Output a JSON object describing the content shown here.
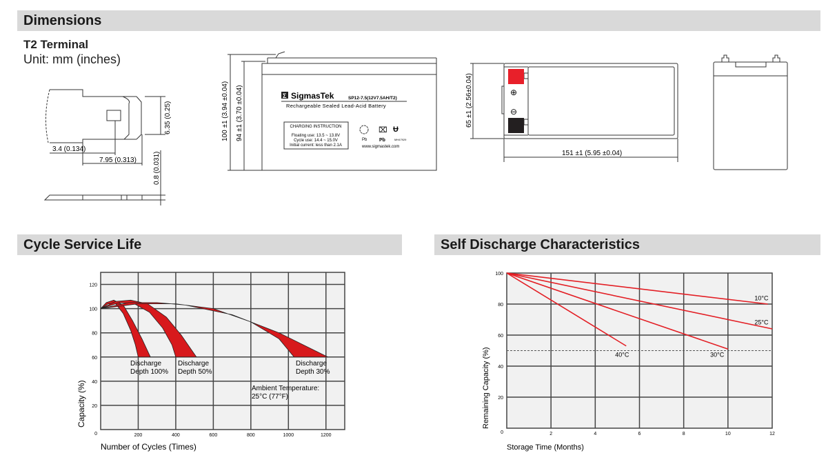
{
  "sections": {
    "dimensions": "Dimensions",
    "cycle_life": "Cycle Service Life",
    "self_discharge": "Self Discharge Characteristics"
  },
  "terminal": {
    "title": "T2 Terminal",
    "unit": "Unit: mm (inches)",
    "dim_width": "3.4 (0.134)",
    "dim_hole": "7.95 (0.313)",
    "dim_height": "6.35 (0.25)",
    "dim_thickness": "0.8 (0.031)"
  },
  "battery_front": {
    "dim_total_height": "100 ±1 (3.94 ±0.04)",
    "dim_case_height": "94 ±1 (3.70 ±0.04)",
    "brand": "SigmasTek",
    "brand_logo": "Σ",
    "model": "SP12-7.5(12V7.5AH/T2)",
    "description": "Rechargeable Sealed Lead-Acid Battery",
    "charging_title": "CHARGING INSTRUCTION",
    "charging_lines": [
      "Floating use: 13.5 ~ 13.8V",
      "Cycle use: 14.4 ~ 15.0V",
      "Initial current: less than 2.1A"
    ],
    "recycle_label": "Pb",
    "bin_label": "Pb",
    "ul_code": "MH47929",
    "website": "www.sigmastek.com"
  },
  "battery_top": {
    "dim_depth": "65 ±1 (2.56±0.04)",
    "dim_length": "151 ±1 (5.95 ±0.04)",
    "positive_symbol": "⊕",
    "negative_symbol": "⊖",
    "colors": {
      "positive": "#e8202a",
      "negative": "#231f20"
    }
  },
  "chart_data": [
    {
      "type": "area",
      "title": "Cycle Service Life",
      "xlabel": "Number of Cycles (Times)",
      "ylabel": "Capacity (%)",
      "xlim": [
        0,
        1300
      ],
      "ylim": [
        0,
        130
      ],
      "xticks": [
        200,
        400,
        600,
        800,
        1000,
        1200
      ],
      "yticks": [
        0,
        20,
        40,
        60,
        80,
        100,
        120
      ],
      "grid": true,
      "band_color": "#d7191c",
      "series": [
        {
          "name": "Discharge Depth 100%",
          "upper": [
            [
              0,
              100
            ],
            [
              30,
              105
            ],
            [
              70,
              107
            ],
            [
              120,
              103
            ],
            [
              170,
              90
            ],
            [
              220,
              75
            ],
            [
              265,
              60
            ]
          ],
          "lower": [
            [
              0,
              100
            ],
            [
              40,
              104
            ],
            [
              80,
              104
            ],
            [
              120,
              96
            ],
            [
              160,
              82
            ],
            [
              185,
              70
            ],
            [
              200,
              60
            ]
          ]
        },
        {
          "name": "Discharge Depth 50%",
          "upper": [
            [
              0,
              100
            ],
            [
              80,
              106
            ],
            [
              160,
              107
            ],
            [
              250,
              104
            ],
            [
              350,
              93
            ],
            [
              430,
              78
            ],
            [
              510,
              60
            ]
          ],
          "lower": [
            [
              0,
              100
            ],
            [
              100,
              105
            ],
            [
              180,
              104
            ],
            [
              260,
              97
            ],
            [
              330,
              84
            ],
            [
              380,
              70
            ],
            [
              400,
              60
            ]
          ]
        },
        {
          "name": "Discharge Depth 30%",
          "upper": [
            [
              0,
              100
            ],
            [
              150,
              105
            ],
            [
              300,
              105
            ],
            [
              450,
              103
            ],
            [
              700,
              95
            ],
            [
              950,
              80
            ],
            [
              1210,
              60
            ]
          ],
          "lower": [
            [
              0,
              100
            ],
            [
              200,
              104
            ],
            [
              400,
              104
            ],
            [
              600,
              100
            ],
            [
              800,
              89
            ],
            [
              950,
              75
            ],
            [
              1030,
              60
            ]
          ]
        }
      ],
      "labels": [
        [
          "Discharge",
          "Depth 100%"
        ],
        [
          "Discharge",
          "Depth 50%"
        ],
        [
          "Discharge",
          "Depth 30%"
        ]
      ],
      "annotation": [
        "Ambient Temperature:",
        "25°C (77°F)"
      ]
    },
    {
      "type": "line",
      "title": "Self Discharge Characteristics",
      "xlabel": "Storage Time (Months)",
      "ylabel": "Remaining Capacity (%)",
      "xlim": [
        0,
        12
      ],
      "ylim": [
        0,
        100
      ],
      "xticks": [
        0,
        2,
        4,
        6,
        8,
        10,
        12
      ],
      "yticks": [
        0,
        20,
        40,
        60,
        80,
        100
      ],
      "grid": true,
      "reference_line": 50,
      "line_color": "#e31e24",
      "series": [
        {
          "name": "10°C",
          "x": [
            0,
            11.8
          ],
          "y": [
            100,
            80
          ]
        },
        {
          "name": "25°C",
          "x": [
            0,
            12
          ],
          "y": [
            100,
            64
          ]
        },
        {
          "name": "30°C",
          "x": [
            0,
            10
          ],
          "y": [
            100,
            51
          ]
        },
        {
          "name": "40°C",
          "x": [
            0,
            5.4
          ],
          "y": [
            100,
            53
          ]
        }
      ]
    }
  ]
}
